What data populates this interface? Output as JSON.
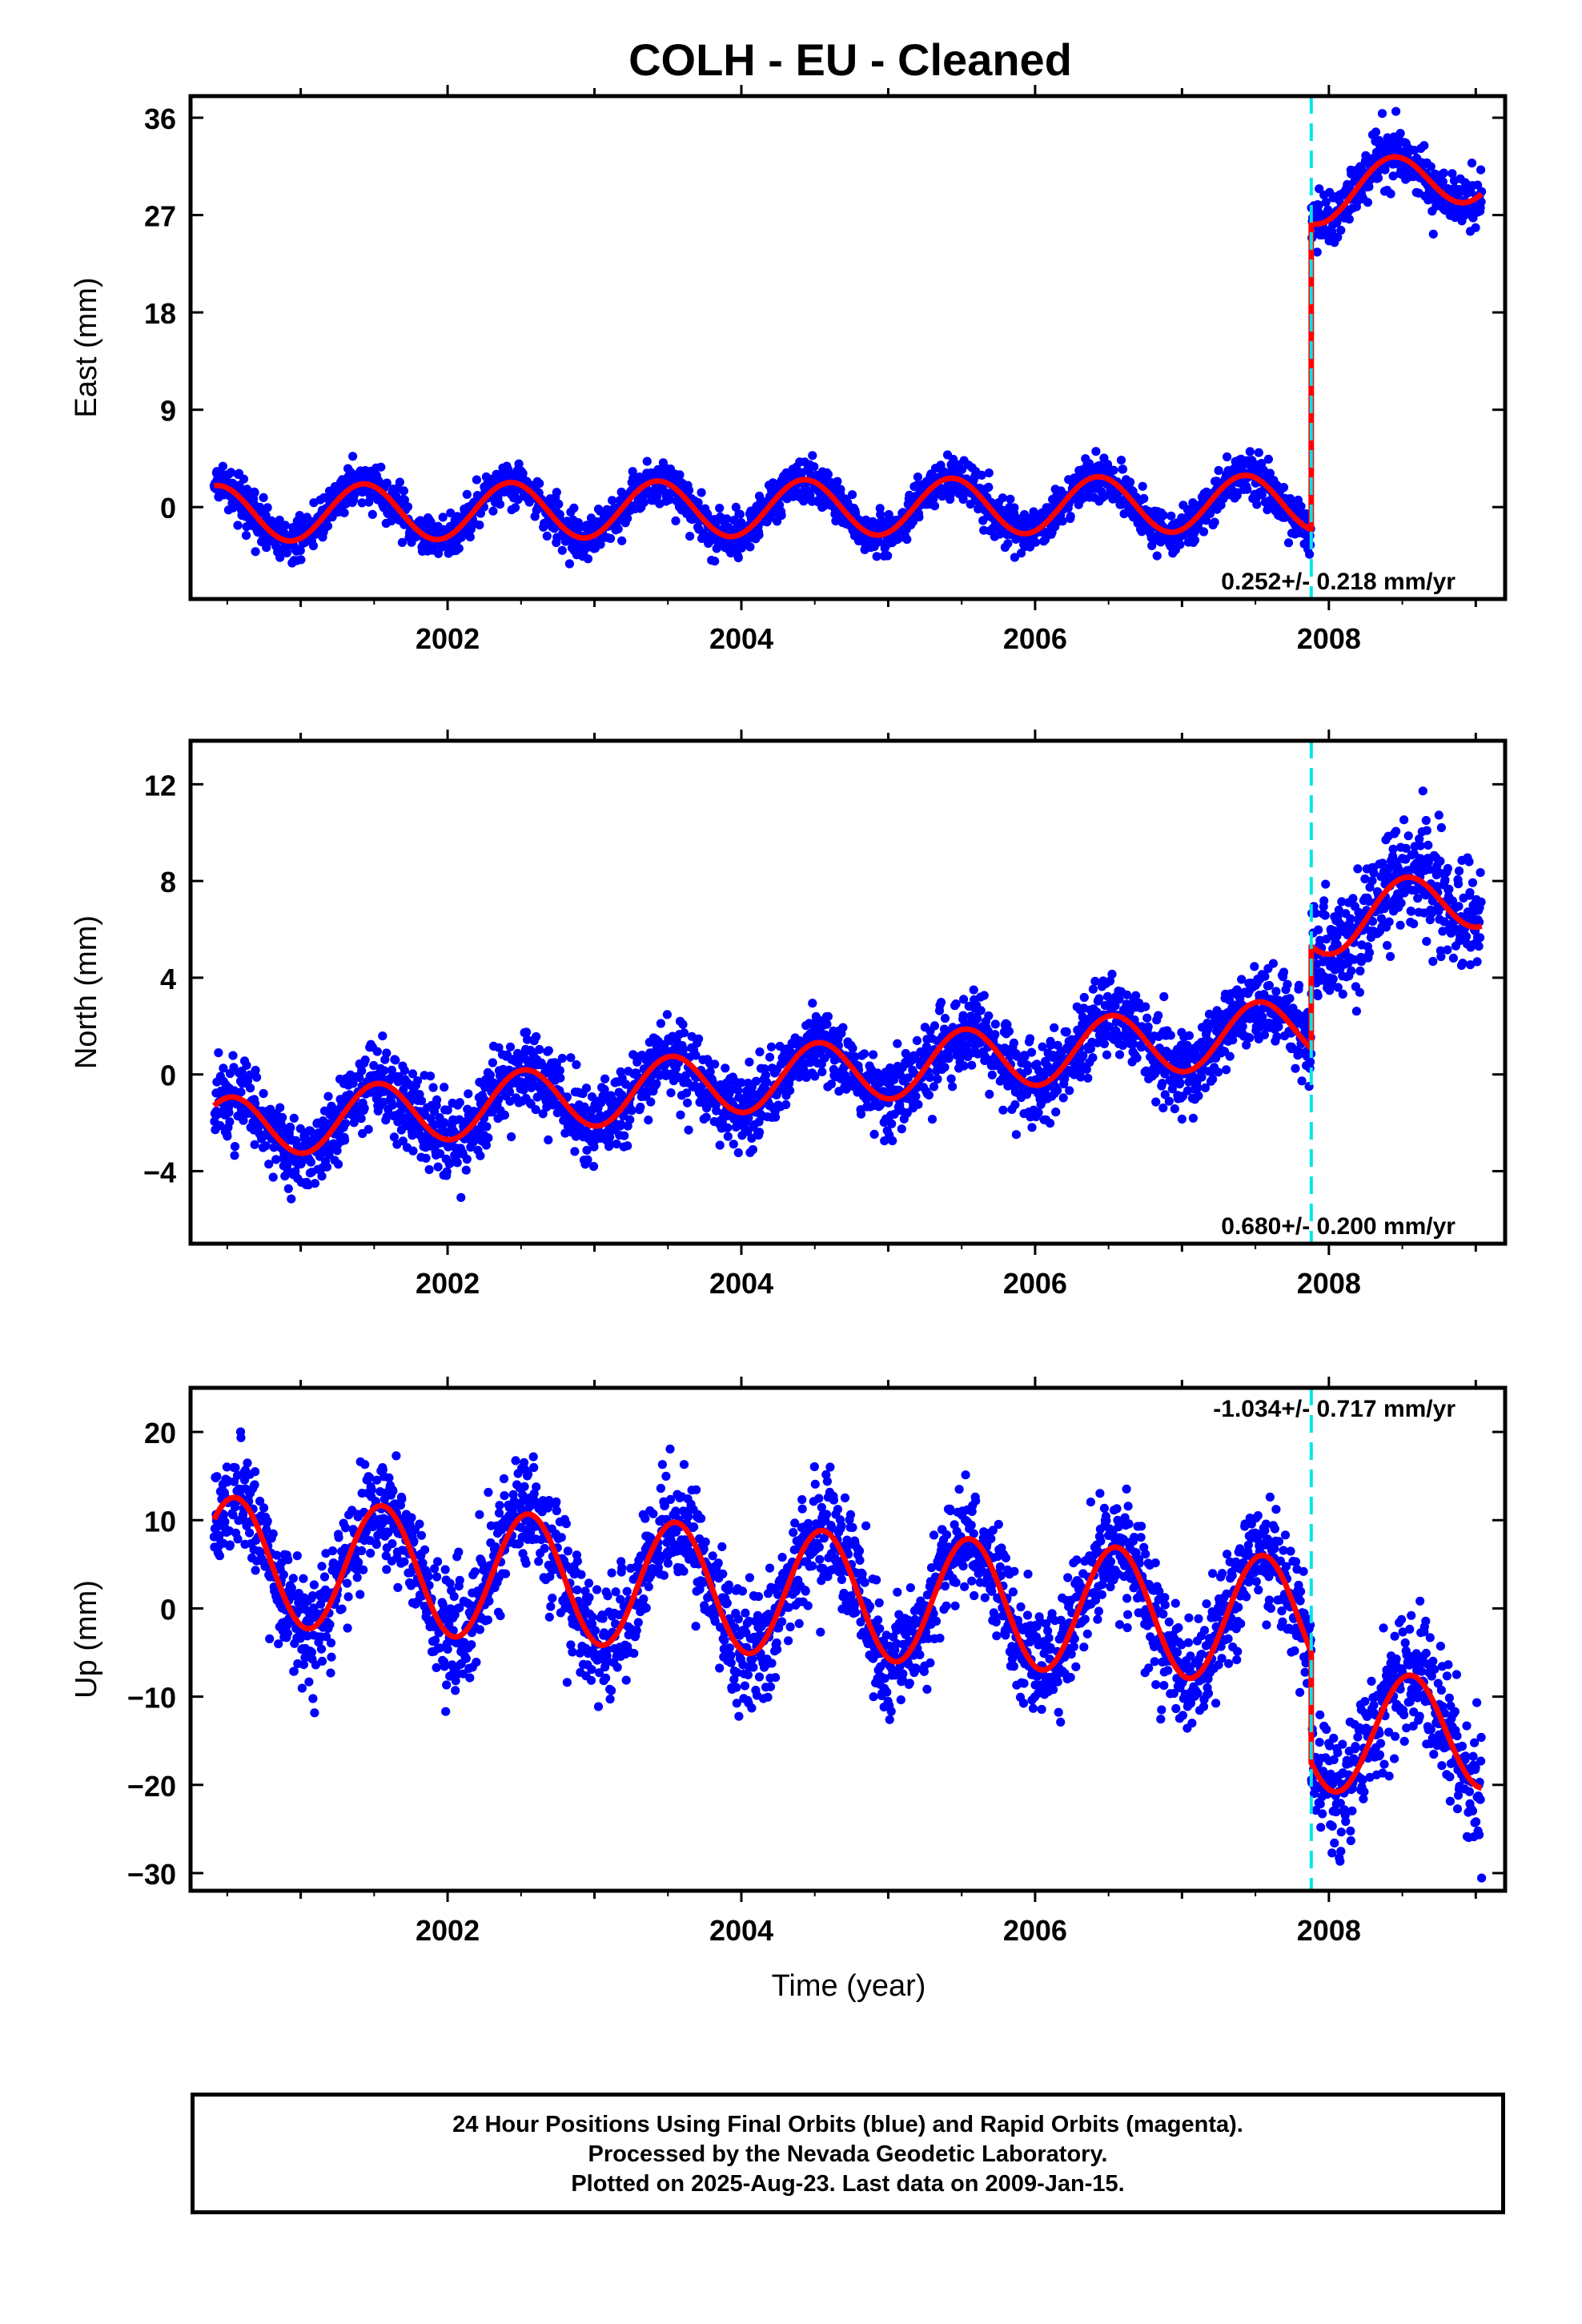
{
  "title": "COLH  - EU - Cleaned",
  "footer": {
    "line1": "24 Hour Positions Using Final Orbits (blue) and Rapid Orbits (magenta).",
    "line2": "Processed by the Nevada Geodetic Laboratory.",
    "line3": "Plotted on 2025-Aug-23. Last data on 2009-Jan-15."
  },
  "colors": {
    "points": "#0000ff",
    "model": "#ff0000",
    "offset_line": "#00e5e5",
    "frame": "#000000"
  },
  "chart_data": [
    {
      "type": "scatter",
      "name": "east",
      "ylabel": "East (mm)",
      "xlabel": "",
      "xlim": [
        2000.25,
        2009.2
      ],
      "ylim": [
        -8.5,
        38
      ],
      "x_ticks": [
        2002,
        2004,
        2006,
        2008
      ],
      "y_ticks": [
        0,
        9,
        18,
        27,
        36
      ],
      "offset_epoch": 2007.88,
      "rate_label": "0.252+/- 0.218 mm/yr",
      "data_start": 2000.41,
      "data_end": 2009.04,
      "model": {
        "pre": {
          "trend_at_start": -0.6,
          "trend_at_offset": 0.4,
          "amplitude": 2.6,
          "peak_phase": 0.43
        },
        "post": {
          "start": 26.2,
          "trend_at_end": 28.5,
          "amplitude": 2.6,
          "peak_phase": 0.43
        }
      },
      "noise": {
        "pre": 1.2,
        "post": 1.6
      }
    },
    {
      "type": "scatter",
      "name": "north",
      "ylabel": "North (mm)",
      "xlabel": "",
      "xlim": [
        2000.25,
        2009.2
      ],
      "ylim": [
        -7,
        13.8
      ],
      "x_ticks": [
        2002,
        2004,
        2006,
        2008
      ],
      "y_ticks": [
        -4,
        0,
        4,
        8,
        12
      ],
      "offset_epoch": 2007.88,
      "rate_label": "0.680+/- 0.200 mm/yr",
      "data_start": 2000.41,
      "data_end": 2009.04,
      "model": {
        "pre": {
          "trend_at_start": -2.3,
          "trend_at_offset": 1.9,
          "amplitude": 1.3,
          "peak_phase": 0.52
        },
        "post": {
          "start": 5.3,
          "trend_at_end": 6.6,
          "amplitude": 1.3,
          "peak_phase": 0.52
        }
      },
      "noise": {
        "pre": 1.0,
        "post": 1.4
      }
    },
    {
      "type": "scatter",
      "name": "up",
      "ylabel": "Up (mm)",
      "xlabel": "Time (year)",
      "xlim": [
        2000.25,
        2009.2
      ],
      "ylim": [
        -32,
        25
      ],
      "x_ticks": [
        2002,
        2004,
        2006,
        2008
      ],
      "y_ticks": [
        -30,
        -20,
        -10,
        0,
        10,
        20
      ],
      "offset_epoch": 2007.88,
      "rate_label": "-1.034+/- 0.717 mm/yr",
      "data_start": 2000.41,
      "data_end": 2009.04,
      "model": {
        "pre": {
          "trend_at_start": 5.5,
          "trend_at_offset": -1.5,
          "amplitude": 7.2,
          "peak_phase": 0.55
        },
        "post": {
          "start": -17.5,
          "trend_at_end": -17.0,
          "amplitude": 6.5,
          "peak_phase": 0.55
        }
      },
      "noise": {
        "pre": 4.0,
        "post": 4.5
      }
    }
  ]
}
